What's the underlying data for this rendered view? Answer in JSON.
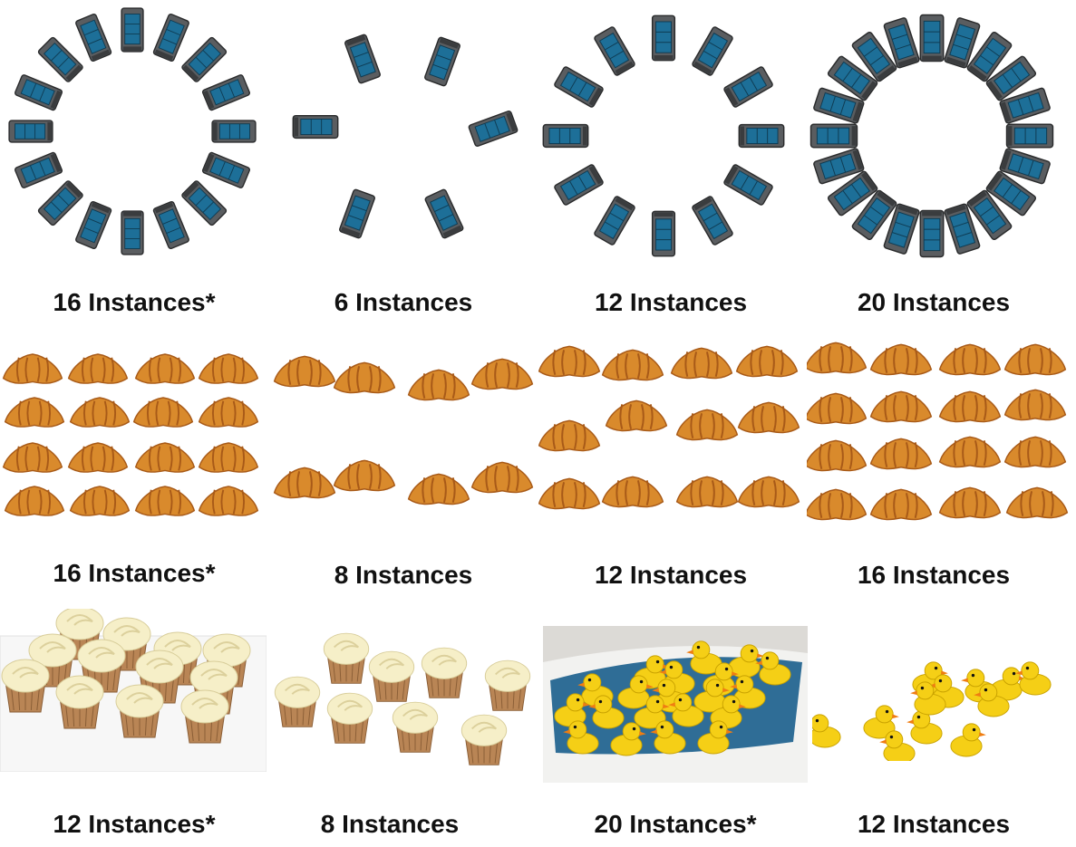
{
  "figure": {
    "rows": [
      {
        "subject": "toy truck",
        "captions": [
          "16 Instances*",
          "6 Instances",
          "12 Instances",
          "20 Instances"
        ]
      },
      {
        "subject": "croissant",
        "captions": [
          "16 Instances*",
          "8 Instances",
          "12 Instances",
          "16 Instances"
        ]
      },
      {
        "subject": "cupcake / rubber duck",
        "captions": [
          "12 Instances*",
          "8 Instances",
          "20 Instances*",
          "12 Instances"
        ]
      }
    ]
  },
  "colors": {
    "truck_body": "#5a5d60",
    "truck_glass": "#1d6f98",
    "croissant": "#d98a2c",
    "croissant_dark": "#a85a18",
    "cupcake_frosting": "#f6efc8",
    "cupcake_base": "#b98555",
    "duck_yellow": "#f5cf16",
    "duck_beak": "#ef7d12",
    "water": "#2f6d96",
    "tub": "#f2f2f0"
  },
  "icons": {
    "truck": "toy-truck-icon",
    "croissant": "croissant-icon",
    "cupcake": "cupcake-icon",
    "duck": "rubber-duck-icon"
  }
}
